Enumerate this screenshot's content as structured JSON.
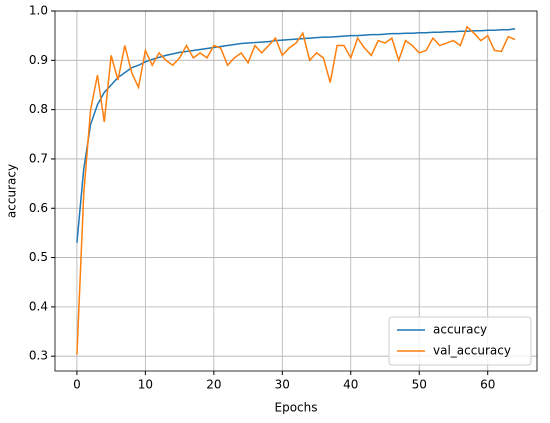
{
  "chart_data": {
    "type": "line",
    "x_label": "Epochs",
    "y_label": "accuracy",
    "x": [
      0,
      1,
      2,
      3,
      4,
      5,
      6,
      7,
      8,
      9,
      10,
      11,
      12,
      13,
      14,
      15,
      16,
      17,
      18,
      19,
      20,
      21,
      22,
      23,
      24,
      25,
      26,
      27,
      28,
      29,
      30,
      31,
      32,
      33,
      34,
      35,
      36,
      37,
      38,
      39,
      40,
      41,
      42,
      43,
      44,
      45,
      46,
      47,
      48,
      49,
      50,
      51,
      52,
      53,
      54,
      55,
      56,
      57,
      58,
      59,
      60,
      61,
      62,
      63,
      64
    ],
    "series": [
      {
        "name": "accuracy",
        "color": "#1f77b4",
        "values": [
          0.53,
          0.68,
          0.77,
          0.81,
          0.835,
          0.85,
          0.865,
          0.875,
          0.885,
          0.89,
          0.897,
          0.902,
          0.906,
          0.91,
          0.913,
          0.916,
          0.918,
          0.92,
          0.922,
          0.924,
          0.926,
          0.928,
          0.93,
          0.932,
          0.934,
          0.935,
          0.936,
          0.937,
          0.938,
          0.94,
          0.941,
          0.942,
          0.943,
          0.944,
          0.945,
          0.946,
          0.947,
          0.947,
          0.948,
          0.949,
          0.95,
          0.95,
          0.951,
          0.952,
          0.952,
          0.953,
          0.954,
          0.954,
          0.955,
          0.955,
          0.956,
          0.956,
          0.957,
          0.957,
          0.958,
          0.958,
          0.959,
          0.959,
          0.96,
          0.96,
          0.961,
          0.961,
          0.962,
          0.962,
          0.964
        ]
      },
      {
        "name": "val_accuracy",
        "color": "#ff7f0e",
        "values": [
          0.303,
          0.63,
          0.8,
          0.87,
          0.775,
          0.91,
          0.86,
          0.93,
          0.875,
          0.845,
          0.92,
          0.89,
          0.915,
          0.9,
          0.89,
          0.905,
          0.93,
          0.905,
          0.915,
          0.905,
          0.93,
          0.925,
          0.89,
          0.905,
          0.915,
          0.895,
          0.93,
          0.915,
          0.93,
          0.945,
          0.91,
          0.925,
          0.935,
          0.955,
          0.9,
          0.915,
          0.905,
          0.855,
          0.93,
          0.93,
          0.905,
          0.945,
          0.925,
          0.91,
          0.94,
          0.935,
          0.945,
          0.9,
          0.94,
          0.93,
          0.915,
          0.92,
          0.945,
          0.93,
          0.935,
          0.94,
          0.93,
          0.968,
          0.955,
          0.94,
          0.95,
          0.92,
          0.918,
          0.948,
          0.942
        ]
      }
    ],
    "xlim": [
      -3.2,
      67.2
    ],
    "xticks": [
      0,
      10,
      20,
      30,
      40,
      50,
      60
    ],
    "ylim": [
      0.27,
      1.0
    ],
    "yticks": [
      0.3,
      0.4,
      0.5,
      0.6,
      0.7,
      0.8,
      0.9,
      {
        "value": 1,
        "label": "1.0"
      }
    ],
    "grid": true,
    "legend": "lower right"
  }
}
